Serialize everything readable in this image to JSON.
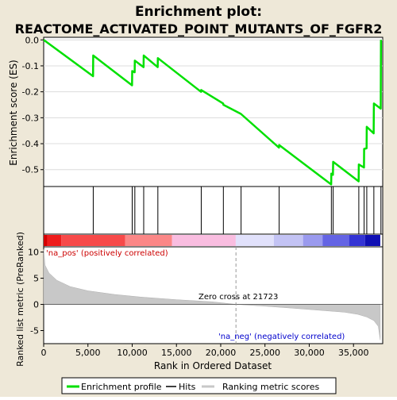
{
  "chart_data": {
    "type": "line",
    "title_line1": "Enrichment plot:",
    "title_line2": "REACTOME_ACTIVATED_POINT_MUTANTS_OF_FGFR2",
    "ylabel_top": "Enrichment score (ES)",
    "ylabel_bottom": "Ranked list metric (PreRanked)",
    "xlabel": "Rank in Ordered Dataset",
    "top_yticks": [
      "0.0",
      "-0.1",
      "-0.2",
      "-0.3",
      "-0.4",
      "-0.5"
    ],
    "top_ytick_values": [
      0.0,
      -0.1,
      -0.2,
      -0.3,
      -0.4,
      -0.5
    ],
    "top_ylim": [
      -0.565,
      0.01
    ],
    "bottom_yticks": [
      "10",
      "5",
      "0",
      "-5"
    ],
    "bottom_ytick_values": [
      10,
      5,
      0,
      -5
    ],
    "bottom_ylim": [
      -7.5,
      11.0
    ],
    "xticks": [
      "0",
      "5,000",
      "10,000",
      "15,000",
      "20,000",
      "25,000",
      "30,000",
      "35,000"
    ],
    "xtick_values": [
      0,
      5000,
      10000,
      15000,
      20000,
      25000,
      30000,
      35000
    ],
    "xlim": [
      0,
      38300
    ],
    "max_rank": 38026,
    "hits": [
      5600,
      10000,
      10300,
      11300,
      12900,
      17800,
      20300,
      22300,
      26600,
      32500,
      32700,
      35600,
      36200,
      36500,
      37300,
      38100
    ],
    "es_points": [
      [
        0,
        0.0
      ],
      [
        5580,
        -0.14
      ],
      [
        5600,
        -0.06
      ],
      [
        9980,
        -0.175
      ],
      [
        10000,
        -0.12
      ],
      [
        10280,
        -0.125
      ],
      [
        10300,
        -0.08
      ],
      [
        11280,
        -0.105
      ],
      [
        11300,
        -0.06
      ],
      [
        12880,
        -0.105
      ],
      [
        12900,
        -0.07
      ],
      [
        17780,
        -0.2
      ],
      [
        17800,
        -0.193
      ],
      [
        20280,
        -0.245
      ],
      [
        20300,
        -0.25
      ],
      [
        22280,
        -0.285
      ],
      [
        26580,
        -0.415
      ],
      [
        26600,
        -0.405
      ],
      [
        32480,
        -0.557
      ],
      [
        32500,
        -0.515
      ],
      [
        32680,
        -0.52
      ],
      [
        32700,
        -0.47
      ],
      [
        35580,
        -0.545
      ],
      [
        35600,
        -0.48
      ],
      [
        36180,
        -0.492
      ],
      [
        36200,
        -0.42
      ],
      [
        36480,
        -0.418
      ],
      [
        36500,
        -0.335
      ],
      [
        37280,
        -0.36
      ],
      [
        37300,
        -0.245
      ],
      [
        38080,
        -0.265
      ],
      [
        38100,
        0.0
      ]
    ],
    "ranked_metric_profile": [
      [
        0,
        10.5
      ],
      [
        150,
        7.5
      ],
      [
        600,
        6.0
      ],
      [
        1500,
        4.6
      ],
      [
        3000,
        3.4
      ],
      [
        5000,
        2.6
      ],
      [
        8000,
        1.9
      ],
      [
        11000,
        1.4
      ],
      [
        15000,
        0.9
      ],
      [
        19000,
        0.5
      ],
      [
        21723,
        0.0
      ],
      [
        25000,
        -0.35
      ],
      [
        28000,
        -0.7
      ],
      [
        31000,
        -1.1
      ],
      [
        34000,
        -1.5
      ],
      [
        35500,
        -1.9
      ],
      [
        36500,
        -2.4
      ],
      [
        37300,
        -3.1
      ],
      [
        37800,
        -4.2
      ],
      [
        38026,
        -6.8
      ]
    ],
    "label_pos": "'na_pos' (positively correlated)",
    "label_neg": "'na_neg' (negatively correlated)",
    "zero_cross_label": "Zero cross at 21723",
    "zero_cross": 21723,
    "heat_segments": [
      {
        "from": 0,
        "to": 400,
        "color": "#d40000"
      },
      {
        "from": 400,
        "to": 2000,
        "color": "#ee1c1c"
      },
      {
        "from": 2000,
        "to": 9200,
        "color": "#f74a4a"
      },
      {
        "from": 9200,
        "to": 14500,
        "color": "#fb8787"
      },
      {
        "from": 14500,
        "to": 21700,
        "color": "#f9bde0"
      },
      {
        "from": 21700,
        "to": 26000,
        "color": "#e1e1fb"
      },
      {
        "from": 26000,
        "to": 29300,
        "color": "#c3c3f4"
      },
      {
        "from": 29300,
        "to": 31500,
        "color": "#9a9aee"
      },
      {
        "from": 31500,
        "to": 34500,
        "color": "#6464e4"
      },
      {
        "from": 34500,
        "to": 36300,
        "color": "#3434d4"
      },
      {
        "from": 36300,
        "to": 38026,
        "color": "#1010b4"
      }
    ],
    "colors": {
      "es_line": "#00e000",
      "hits": "#000000",
      "metric_fill": "#c8c8c8",
      "grid": "#dcdcdc",
      "background": "#eee8d8"
    },
    "legend": [
      "Enrichment profile",
      "Hits",
      "Ranking metric scores"
    ]
  }
}
